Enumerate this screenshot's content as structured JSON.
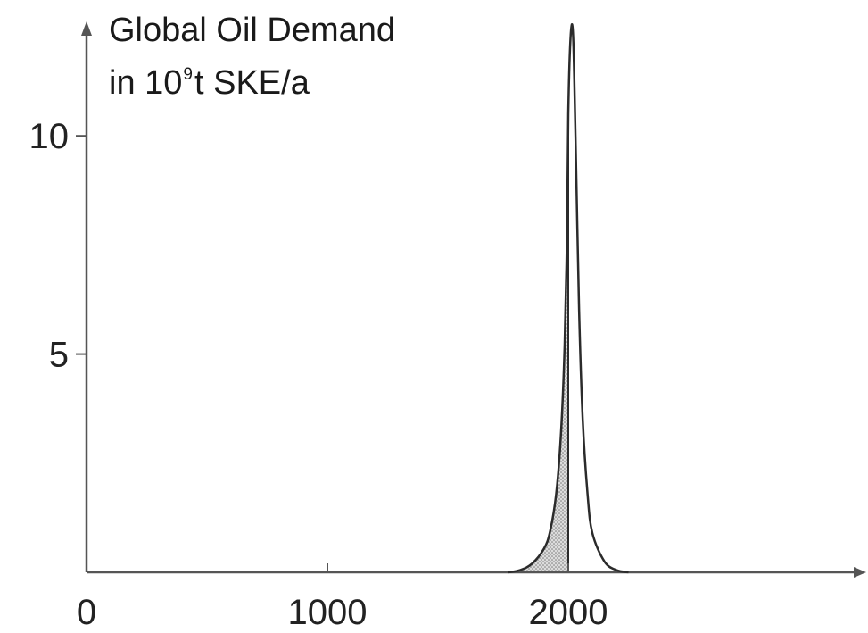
{
  "chart_data": {
    "type": "area",
    "title_line1": "Global Oil Demand",
    "ylabel_prefix": "in 10",
    "ylabel_exponent": "9",
    "ylabel_suffix": "t SKE/a",
    "xlabel": "",
    "xlim": [
      0,
      3200
    ],
    "ylim": [
      0,
      12.5
    ],
    "x_ticks": [
      {
        "value": 0,
        "label": "0"
      },
      {
        "value": 1000,
        "label": "1000"
      },
      {
        "value": 2000,
        "label": "2000"
      }
    ],
    "y_ticks": [
      {
        "value": 5,
        "label": "5"
      },
      {
        "value": 10,
        "label": "10"
      }
    ],
    "series": [
      {
        "x": [
          1750,
          1800,
          1850,
          1900,
          1925,
          1950,
          1970,
          1985,
          1995,
          2000,
          2010,
          2020,
          2030,
          2045,
          2060,
          2080,
          2100,
          2150,
          2200,
          2250
        ],
        "y": [
          0,
          0.05,
          0.2,
          0.55,
          0.95,
          1.8,
          3.2,
          5.2,
          7.8,
          10.5,
          12.3,
          12.3,
          10.0,
          6.0,
          3.5,
          1.8,
          0.9,
          0.25,
          0.05,
          0
        ]
      }
    ],
    "shaded_region": {
      "x_from": 1800,
      "x_to": 2000,
      "pattern": "dotted"
    },
    "grid": false,
    "legend": "none",
    "colors": {
      "line": "#2b2b2b",
      "shade": "#d0d0d0",
      "axis": "#555555"
    }
  }
}
